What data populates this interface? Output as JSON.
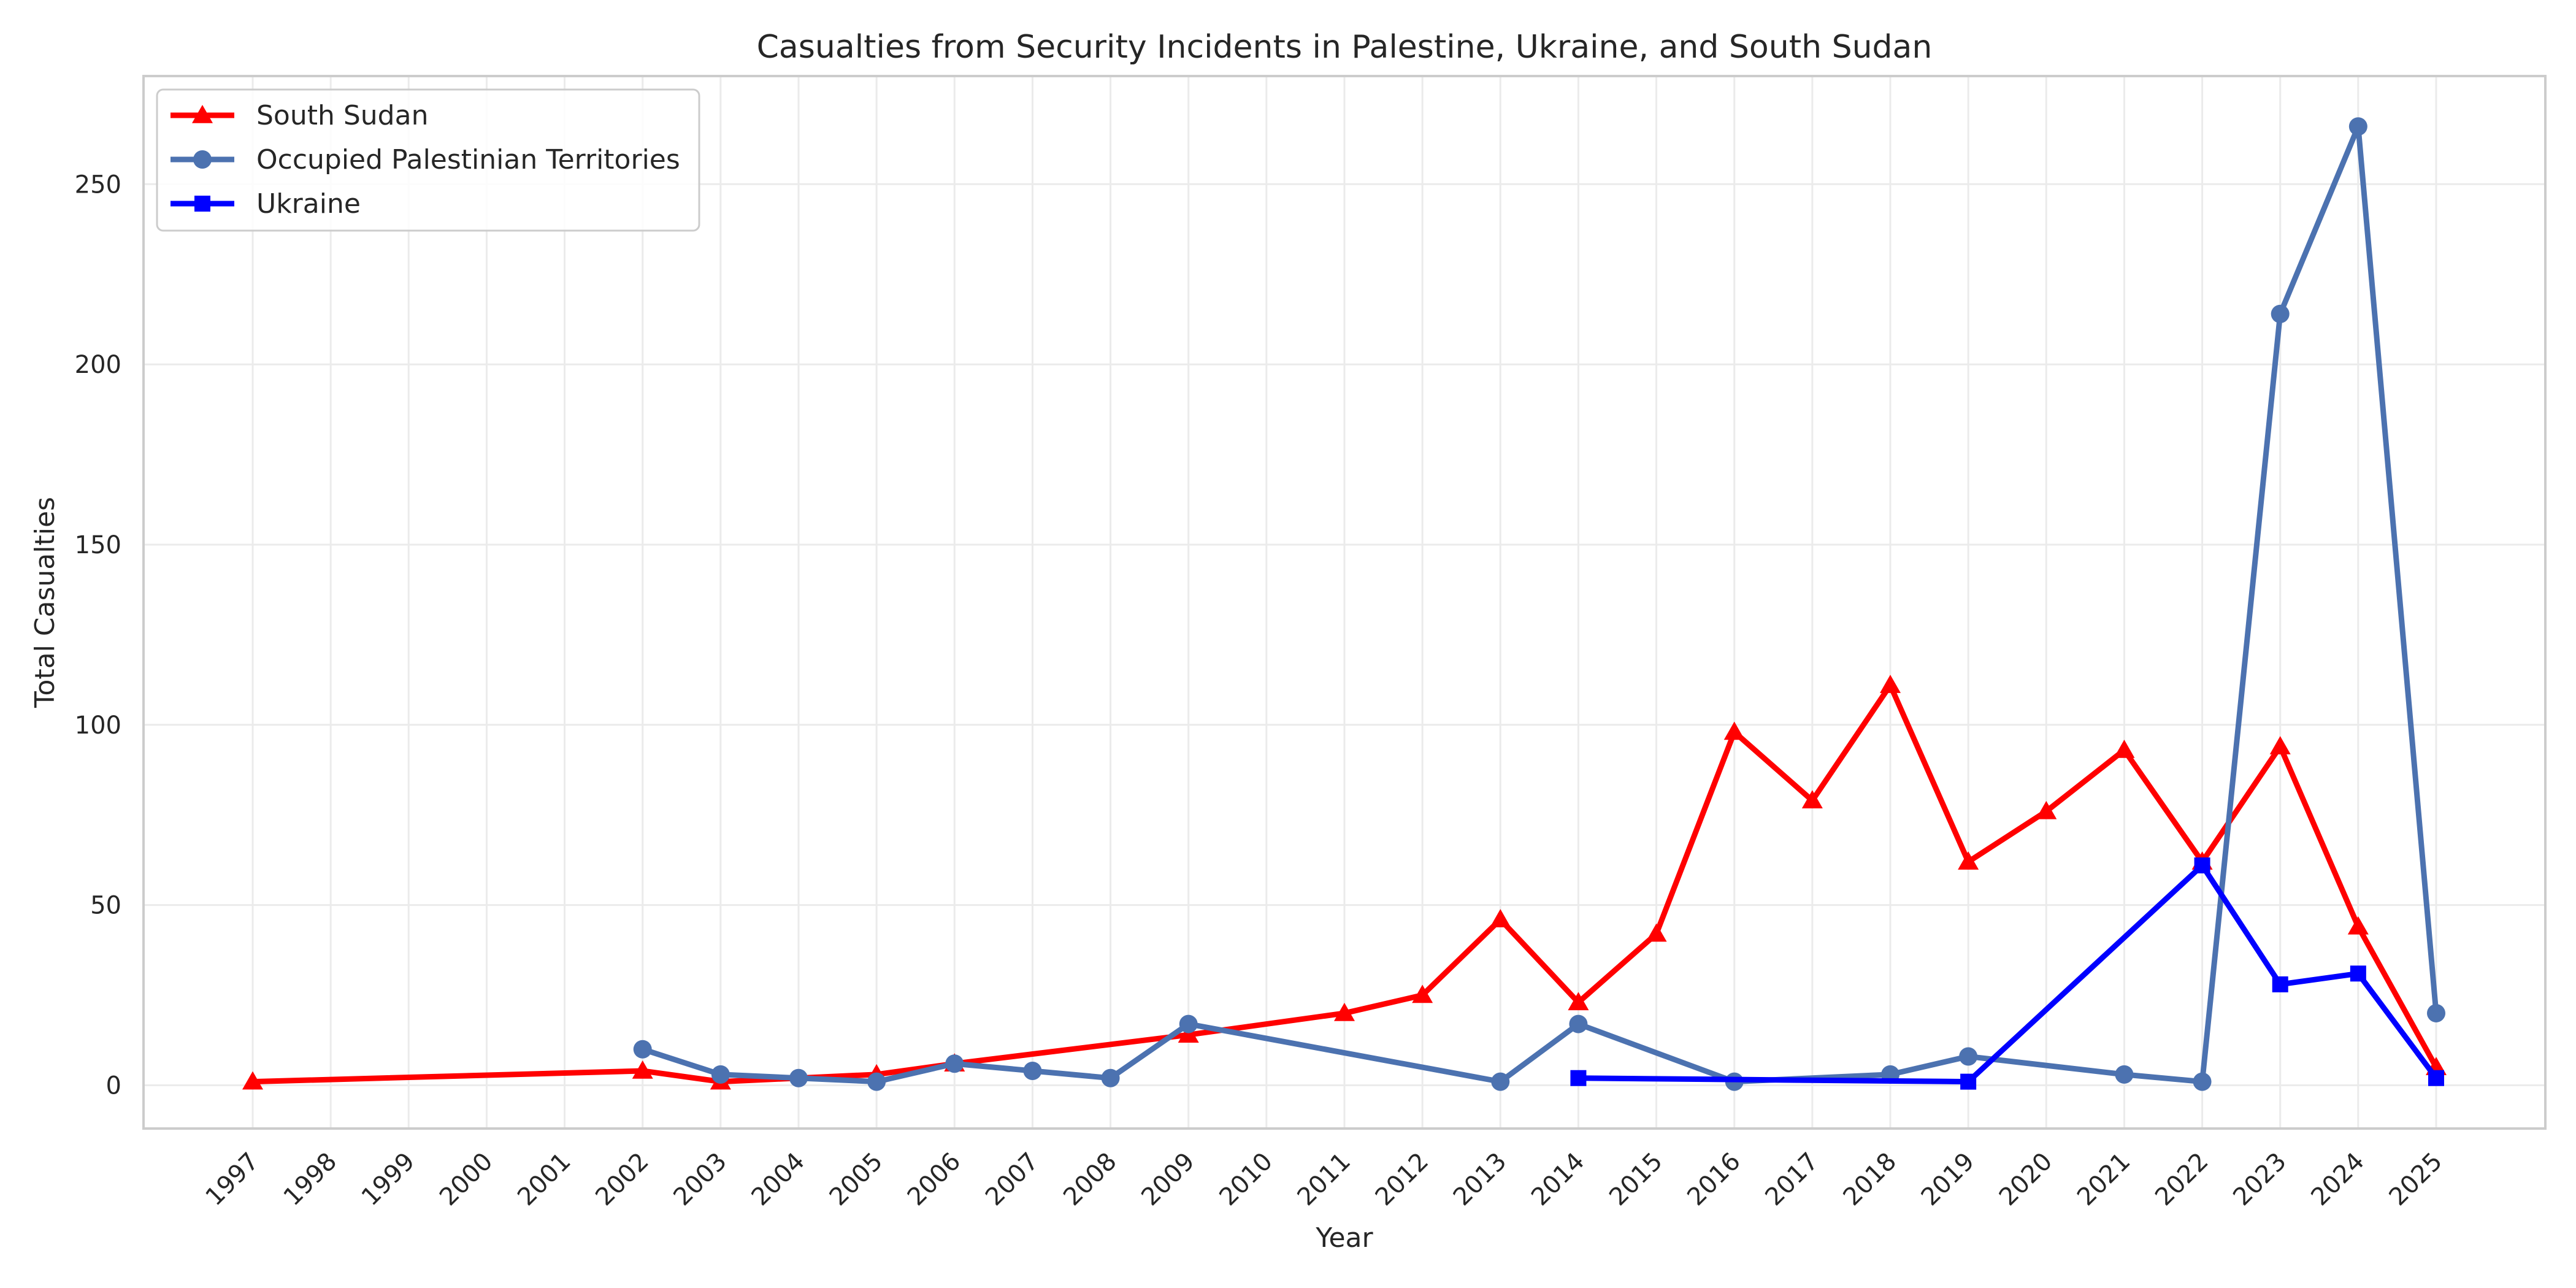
{
  "chart_data": {
    "type": "line",
    "title": "Casualties from Security Incidents in Palestine, Ukraine, and South Sudan",
    "xlabel": "Year",
    "ylabel": "Total Casualties",
    "xlim": [
      1995.6,
      2026.4
    ],
    "ylim": [
      -12,
      280
    ],
    "x_ticks": [
      1997,
      1998,
      1999,
      2000,
      2001,
      2002,
      2003,
      2004,
      2005,
      2006,
      2007,
      2008,
      2009,
      2010,
      2011,
      2012,
      2013,
      2014,
      2015,
      2016,
      2017,
      2018,
      2019,
      2020,
      2021,
      2022,
      2023,
      2024,
      2025
    ],
    "y_ticks": [
      0,
      50,
      100,
      150,
      200,
      250
    ],
    "grid": true,
    "legend_position": "top-left",
    "series": [
      {
        "name": "South Sudan",
        "color": "#ff0000",
        "marker": "triangle",
        "x": [
          1997,
          2002,
          2003,
          2005,
          2006,
          2009,
          2011,
          2012,
          2013,
          2014,
          2015,
          2016,
          2017,
          2018,
          2019,
          2020,
          2021,
          2022,
          2023,
          2024,
          2025
        ],
        "y": [
          1,
          4,
          1,
          3,
          6,
          14,
          20,
          25,
          46,
          23,
          42,
          98,
          79,
          111,
          62,
          76,
          93,
          62,
          94,
          44,
          5
        ]
      },
      {
        "name": "Occupied Palestinian Territories",
        "color": "#4c72b0",
        "marker": "circle",
        "x": [
          2002,
          2003,
          2004,
          2005,
          2006,
          2007,
          2008,
          2009,
          2013,
          2014,
          2016,
          2018,
          2019,
          2021,
          2022,
          2023,
          2024,
          2025
        ],
        "y": [
          10,
          3,
          2,
          1,
          6,
          4,
          2,
          17,
          1,
          17,
          1,
          3,
          8,
          3,
          1,
          214,
          266,
          20
        ]
      },
      {
        "name": "Ukraine",
        "color": "#0000ff",
        "marker": "square",
        "x": [
          2014,
          2019,
          2022,
          2023,
          2024,
          2025
        ],
        "y": [
          2,
          1,
          61,
          28,
          31,
          2
        ]
      }
    ]
  }
}
